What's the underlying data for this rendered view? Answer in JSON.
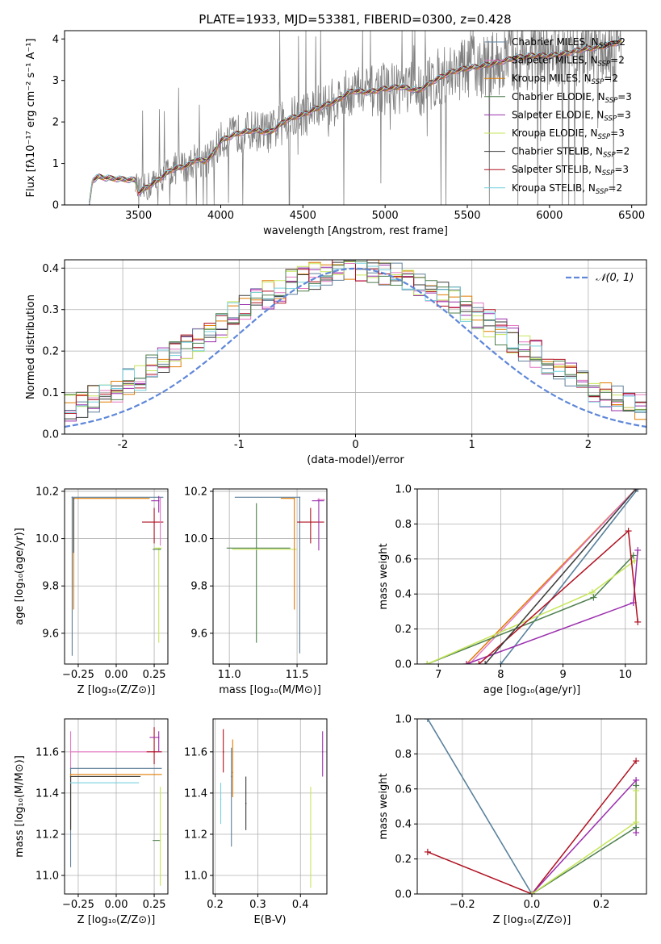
{
  "figure_title": "PLATE=1933, MJD=53381, FIBERID=0300, z=0.428",
  "colors": {
    "chabrier_miles": "#5e7f9a",
    "salpeter_miles": "#e377c2",
    "kroupa_miles": "#e07b00",
    "chabrier_elodie": "#4e7f4e",
    "salpeter_elodie": "#9b2fae",
    "kroupa_elodie": "#c6e65a",
    "chabrier_stelib": "#3a3a3a",
    "salpeter_stelib": "#b01020",
    "kroupa_stelib": "#76d0dd",
    "data_spectrum": "#808080",
    "normal_curve": "#5f87d9",
    "grid": "#b0b0b0"
  },
  "chart_data": [
    {
      "id": "spectrum",
      "type": "line",
      "xlabel": "wavelength [Angstrom, rest frame]",
      "ylabel": "Flux [fλ10⁻¹⁷ erg cm⁻² s⁻¹ A⁻¹]",
      "xlim": [
        3050,
        6590
      ],
      "ylim": [
        0,
        4.2
      ],
      "xticks": [
        3500,
        4000,
        4500,
        5000,
        5500,
        6000,
        6500
      ],
      "yticks": [
        0,
        1,
        2,
        3,
        4
      ],
      "legend_position": "top-right",
      "series": [
        {
          "name": "Chabrier MILES, N_SSP=2",
          "legend_main": "Chabrier MILES, N",
          "legend_sub": "SSP",
          "legend_tail": "=2",
          "color_key": "chabrier_miles"
        },
        {
          "name": "Salpeter MILES, N_SSP=2",
          "legend_main": "Salpeter MILES, N",
          "legend_sub": "SSP",
          "legend_tail": "=2",
          "color_key": "salpeter_miles"
        },
        {
          "name": "Kroupa MILES, N_SSP=2",
          "legend_main": "Kroupa MILES, N",
          "legend_sub": "SSP",
          "legend_tail": "=2",
          "color_key": "kroupa_miles"
        },
        {
          "name": "Chabrier ELODIE, N_SSP=3",
          "legend_main": "Chabrier ELODIE, N",
          "legend_sub": "SSP",
          "legend_tail": "=3",
          "color_key": "chabrier_elodie"
        },
        {
          "name": "Salpeter ELODIE, N_SSP=3",
          "legend_main": "Salpeter ELODIE, N",
          "legend_sub": "SSP",
          "legend_tail": "=3",
          "color_key": "salpeter_elodie"
        },
        {
          "name": "Kroupa ELODIE, N_SSP=3",
          "legend_main": "Kroupa ELODIE, N",
          "legend_sub": "SSP",
          "legend_tail": "=3",
          "color_key": "kroupa_elodie"
        },
        {
          "name": "Chabrier STELIB, N_SSP=2",
          "legend_main": "Chabrier STELIB, N",
          "legend_sub": "SSP",
          "legend_tail": "=2",
          "color_key": "chabrier_stelib"
        },
        {
          "name": "Salpeter STELIB, N_SSP=3",
          "legend_main": "Salpeter STELIB, N",
          "legend_sub": "SSP",
          "legend_tail": "=3",
          "color_key": "salpeter_stelib"
        },
        {
          "name": "Kroupa STELIB, N_SSP=2",
          "legend_main": "Kroupa STELIB, N",
          "legend_sub": "SSP",
          "legend_tail": "=2",
          "color_key": "kroupa_stelib"
        }
      ],
      "model_continuum": [
        [
          3200,
          0.0
        ],
        [
          3220,
          0.6
        ],
        [
          3260,
          0.68
        ],
        [
          3300,
          0.65
        ],
        [
          3400,
          0.62
        ],
        [
          3480,
          0.6
        ],
        [
          3500,
          0.3
        ],
        [
          3600,
          0.55
        ],
        [
          3700,
          0.85
        ],
        [
          3800,
          0.95
        ],
        [
          3850,
          1.1
        ],
        [
          3900,
          1.05
        ],
        [
          3950,
          1.2
        ],
        [
          4000,
          1.55
        ],
        [
          4100,
          1.72
        ],
        [
          4200,
          1.8
        ],
        [
          4300,
          1.75
        ],
        [
          4400,
          2.05
        ],
        [
          4500,
          2.18
        ],
        [
          4600,
          2.35
        ],
        [
          4700,
          2.5
        ],
        [
          4800,
          2.75
        ],
        [
          4900,
          2.72
        ],
        [
          5000,
          2.8
        ],
        [
          5100,
          2.85
        ],
        [
          5200,
          2.75
        ],
        [
          5300,
          3.0
        ],
        [
          5400,
          3.2
        ],
        [
          5500,
          3.3
        ],
        [
          5600,
          3.35
        ],
        [
          5700,
          3.45
        ],
        [
          5800,
          3.55
        ],
        [
          5900,
          3.6
        ],
        [
          6000,
          3.6
        ],
        [
          6100,
          3.65
        ],
        [
          6200,
          3.75
        ],
        [
          6300,
          3.8
        ],
        [
          6400,
          3.9
        ],
        [
          6440,
          3.95
        ]
      ],
      "data_range": [
        3200,
        6440
      ]
    },
    {
      "id": "residuals",
      "type": "line",
      "xlabel": "(data-model)/error",
      "ylabel": "Normed distribution",
      "xlim": [
        -2.5,
        2.5
      ],
      "ylim": [
        0,
        0.42
      ],
      "xticks": [
        -2,
        -1,
        0,
        1,
        2
      ],
      "yticks": [
        0.0,
        0.1,
        0.2,
        0.3,
        0.4
      ],
      "legend_position": "top-right",
      "normal_label": "𝒩(0, 1)",
      "bin_width": 0.1
    },
    {
      "id": "age_vs_Z",
      "type": "scatter",
      "xlabel": "Z [log₁₀(Z/Z⊙)]",
      "ylabel": "age  [log₁₀(age/yr)]",
      "xlim": [
        -0.34,
        0.34
      ],
      "ylim": [
        9.47,
        10.21
      ],
      "xticks": [
        -0.25,
        0.0,
        0.25
      ],
      "xticklabels": [
        "−0.25",
        "0.00",
        "0.25"
      ],
      "yticks": [
        9.6,
        9.8,
        10.0,
        10.2
      ],
      "yticklabels": [
        "9.6",
        "9.8",
        "10.0",
        "10.2"
      ],
      "errorbars": [
        {
          "x": -0.29,
          "y": 10.175,
          "xerr": [
            0.0,
            0.6
          ],
          "yerr": [
            0.0,
            0.0
          ],
          "color_key": "chabrier_miles"
        },
        {
          "x": -0.29,
          "y": 10.175,
          "xerr": [
            0.0,
            0.0
          ],
          "yerr": [
            0.67,
            0.0
          ],
          "color_key": "chabrier_miles"
        },
        {
          "x": -0.28,
          "y": 10.17,
          "xerr": [
            0.0,
            0.5
          ],
          "yerr": [
            0.47,
            0.0
          ],
          "color_key": "kroupa_miles"
        },
        {
          "x": -0.28,
          "y": 10.17,
          "xerr": [
            0.0,
            0.0
          ],
          "yerr": [
            0.23,
            0.0
          ],
          "color_key": "chabrier_stelib"
        },
        {
          "x": 0.25,
          "y": 10.07,
          "xerr": [
            0.08,
            0.06
          ],
          "yerr": [
            0.09,
            0.06
          ],
          "color_key": "salpeter_stelib"
        },
        {
          "x": 0.28,
          "y": 10.16,
          "xerr": [
            0.05,
            0.0
          ],
          "yerr": [
            0.05,
            0.02
          ],
          "color_key": "salpeter_elodie"
        },
        {
          "x": 0.28,
          "y": 9.96,
          "xerr": [
            0.03,
            0.02
          ],
          "yerr": [
            0.4,
            0.0
          ],
          "color_key": "kroupa_elodie"
        },
        {
          "x": 0.29,
          "y": 9.955,
          "xerr": [
            0.05,
            0.0
          ],
          "yerr": [
            0.0,
            0.0
          ],
          "color_key": "chabrier_elodie"
        },
        {
          "x": 0.29,
          "y": 10.17,
          "xerr": [
            0.0,
            0.0
          ],
          "yerr": [
            0.2,
            0.0
          ],
          "color_key": "salpeter_miles"
        }
      ]
    },
    {
      "id": "age_vs_mass",
      "type": "scatter",
      "xlabel": "mass [log₁₀(M/M⊙)]",
      "ylabel": "",
      "xlim": [
        10.88,
        11.72
      ],
      "ylim": [
        9.47,
        10.21
      ],
      "xticks": [
        11.0,
        11.5
      ],
      "xticklabels": [
        "11.0",
        "11.5"
      ],
      "yticks": [
        9.6,
        9.8,
        10.0,
        10.2
      ],
      "yticklabels": [
        "9.6",
        "9.8",
        "10.0",
        "10.2"
      ],
      "errorbars": [
        {
          "x": 11.2,
          "y": 9.96,
          "xerr": [
            0.22,
            0.25
          ],
          "yerr": [
            0.4,
            0.19
          ],
          "color_key": "chabrier_elodie"
        },
        {
          "x": 11.2,
          "y": 9.955,
          "xerr": [
            0.18,
            0.3
          ],
          "yerr": [
            0.0,
            0.0
          ],
          "color_key": "kroupa_elodie"
        },
        {
          "x": 11.52,
          "y": 10.175,
          "xerr": [
            0.48,
            0.0
          ],
          "yerr": [
            0.66,
            0.0
          ],
          "color_key": "chabrier_miles"
        },
        {
          "x": 11.48,
          "y": 10.17,
          "xerr": [
            0.1,
            0.0
          ],
          "yerr": [
            0.47,
            0.0
          ],
          "color_key": "kroupa_miles"
        },
        {
          "x": 11.6,
          "y": 10.07,
          "xerr": [
            0.1,
            0.1
          ],
          "yerr": [
            0.09,
            0.06
          ],
          "color_key": "salpeter_stelib"
        },
        {
          "x": 11.66,
          "y": 10.16,
          "xerr": [
            0.05,
            0.04
          ],
          "yerr": [
            0.21,
            0.01
          ],
          "color_key": "salpeter_elodie"
        },
        {
          "x": 11.7,
          "y": 10.165,
          "xerr": [
            0.05,
            0.0
          ],
          "yerr": [
            0.0,
            0.0
          ],
          "color_key": "salpeter_miles"
        }
      ]
    },
    {
      "id": "massweight_vs_age",
      "type": "line",
      "xlabel": "age  [log₁₀(age/yr)]",
      "ylabel": "mass weight",
      "xlim": [
        6.66,
        10.34
      ],
      "ylim": [
        0,
        1.0
      ],
      "xticks": [
        7,
        8,
        9,
        10
      ],
      "yticks": [
        0.0,
        0.2,
        0.4,
        0.6,
        0.8,
        1.0
      ],
      "series": [
        {
          "color_key": "kroupa_stelib",
          "x": [
            8.0,
            10.2
          ],
          "y": [
            0.0,
            1.0
          ]
        },
        {
          "color_key": "chabrier_miles",
          "x": [
            8.0,
            10.2
          ],
          "y": [
            0.0,
            1.0
          ]
        },
        {
          "color_key": "kroupa_miles",
          "x": [
            7.45,
            10.17
          ],
          "y": [
            0.0,
            1.0
          ]
        },
        {
          "color_key": "salpeter_miles",
          "x": [
            7.5,
            10.17
          ],
          "y": [
            0.0,
            1.0
          ]
        },
        {
          "color_key": "chabrier_elodie",
          "x": [
            6.82,
            9.49,
            10.13
          ],
          "y": [
            0.0,
            0.38,
            0.62
          ]
        },
        {
          "color_key": "kroupa_elodie",
          "x": [
            6.82,
            9.47,
            10.15
          ],
          "y": [
            0.0,
            0.41,
            0.59
          ]
        },
        {
          "color_key": "salpeter_elodie",
          "x": [
            7.45,
            10.13,
            10.2
          ],
          "y": [
            0.0,
            0.35,
            0.65
          ]
        },
        {
          "color_key": "salpeter_stelib",
          "x": [
            7.65,
            10.05,
            10.2
          ],
          "y": [
            0.0,
            0.76,
            0.24
          ]
        },
        {
          "color_key": "chabrier_stelib",
          "x": [
            7.75,
            10.17
          ],
          "y": [
            0.0,
            1.0
          ]
        }
      ]
    },
    {
      "id": "mass_vs_Z",
      "type": "scatter",
      "xlabel": "Z [log₁₀(Z/Z⊙)]",
      "ylabel": "mass [log₁₀(M/M⊙)]",
      "xlim": [
        -0.34,
        0.34
      ],
      "ylim": [
        10.91,
        11.76
      ],
      "xticks": [
        -0.25,
        0.0,
        0.25
      ],
      "xticklabels": [
        "−0.25",
        "0.00",
        "0.25"
      ],
      "yticks": [
        11.0,
        11.2,
        11.4,
        11.6
      ],
      "yticklabels": [
        "11.0",
        "11.2",
        "11.4",
        "11.6"
      ],
      "errorbars": [
        {
          "x": -0.3,
          "y": 11.6,
          "xerr": [
            0.0,
            0.6
          ],
          "yerr": [
            0.37,
            0.1
          ],
          "color_key": "salpeter_miles"
        },
        {
          "x": -0.3,
          "y": 11.52,
          "xerr": [
            0.0,
            0.6
          ],
          "yerr": [
            0.48,
            0.0
          ],
          "color_key": "chabrier_miles"
        },
        {
          "x": -0.3,
          "y": 11.49,
          "xerr": [
            0.0,
            0.6
          ],
          "yerr": [
            0.27,
            0.0
          ],
          "color_key": "kroupa_miles"
        },
        {
          "x": -0.3,
          "y": 11.48,
          "xerr": [
            0.0,
            0.46
          ],
          "yerr": [
            0.26,
            0.0
          ],
          "color_key": "chabrier_stelib"
        },
        {
          "x": -0.3,
          "y": 11.45,
          "xerr": [
            0.0,
            0.45
          ],
          "yerr": [
            0.0,
            0.0
          ],
          "color_key": "kroupa_stelib"
        },
        {
          "x": 0.25,
          "y": 11.6,
          "xerr": [
            0.05,
            0.05
          ],
          "yerr": [
            0.06,
            0.12
          ],
          "color_key": "salpeter_stelib"
        },
        {
          "x": 0.28,
          "y": 11.67,
          "xerr": [
            0.06,
            0.0
          ],
          "yerr": [
            0.07,
            0.03
          ],
          "color_key": "salpeter_elodie"
        },
        {
          "x": 0.29,
          "y": 11.17,
          "xerr": [
            0.05,
            0.0
          ],
          "yerr": [
            0.0,
            0.0
          ],
          "color_key": "chabrier_elodie"
        },
        {
          "x": 0.29,
          "y": 11.17,
          "xerr": [
            0.0,
            0.0
          ],
          "yerr": [
            0.22,
            0.26
          ],
          "color_key": "kroupa_elodie"
        }
      ]
    },
    {
      "id": "mass_vs_ebv",
      "type": "scatter",
      "xlabel": "E(B-V)",
      "ylabel": "",
      "xlim": [
        0.195,
        0.462
      ],
      "ylim": [
        10.91,
        11.76
      ],
      "xticks": [
        0.2,
        0.3,
        0.4
      ],
      "xticklabels": [
        "0.2",
        "0.3",
        "0.4"
      ],
      "yticks": [
        11.0,
        11.2,
        11.4,
        11.6
      ],
      "yticklabels": [
        "11.0",
        "11.2",
        "11.4",
        "11.6"
      ],
      "errorbars": [
        {
          "x": 0.213,
          "y": 11.37,
          "xerr": [
            0,
            0
          ],
          "yerr": [
            0.12,
            0.08
          ],
          "color_key": "kroupa_stelib"
        },
        {
          "x": 0.219,
          "y": 11.6,
          "xerr": [
            0,
            0
          ],
          "yerr": [
            0.1,
            0.11
          ],
          "color_key": "salpeter_stelib"
        },
        {
          "x": 0.238,
          "y": 11.48,
          "xerr": [
            0,
            0
          ],
          "yerr": [
            0.34,
            0.14
          ],
          "color_key": "chabrier_miles"
        },
        {
          "x": 0.241,
          "y": 11.5,
          "xerr": [
            0,
            0
          ],
          "yerr": [
            0.12,
            0.16
          ],
          "color_key": "kroupa_miles"
        },
        {
          "x": 0.272,
          "y": 11.35,
          "xerr": [
            0,
            0
          ],
          "yerr": [
            0.13,
            0.13
          ],
          "color_key": "chabrier_stelib"
        },
        {
          "x": 0.424,
          "y": 11.18,
          "xerr": [
            0,
            0
          ],
          "yerr": [
            0.24,
            0.25
          ],
          "color_key": "kroupa_elodie"
        },
        {
          "x": 0.452,
          "y": 11.6,
          "xerr": [
            0,
            0
          ],
          "yerr": [
            0.12,
            0.1
          ],
          "color_key": "salpeter_elodie"
        }
      ]
    },
    {
      "id": "massweight_vs_Z",
      "type": "line",
      "xlabel": "Z [log₁₀(Z/Z⊙)]",
      "ylabel": "mass weight",
      "xlim": [
        -0.33,
        0.33
      ],
      "ylim": [
        0,
        1.0
      ],
      "xticks": [
        -0.2,
        0.0,
        0.2
      ],
      "xticklabels": [
        "−0.2",
        "0.0",
        "0.2"
      ],
      "yticks": [
        0.0,
        0.2,
        0.4,
        0.6,
        0.8,
        1.0
      ],
      "series": [
        {
          "color_key": "kroupa_stelib",
          "x": [
            -0.3,
            0.0
          ],
          "y": [
            1.0,
            0.0
          ]
        },
        {
          "color_key": "chabrier_miles",
          "x": [
            -0.3,
            0.0
          ],
          "y": [
            1.0,
            0.0
          ]
        },
        {
          "color_key": "salpeter_stelib",
          "x": [
            -0.3,
            0.0,
            0.3
          ],
          "y": [
            0.24,
            0.0,
            0.76
          ]
        },
        {
          "color_key": "salpeter_elodie",
          "x": [
            0.0,
            0.3,
            0.3
          ],
          "y": [
            0.0,
            0.65,
            0.35
          ]
        },
        {
          "color_key": "chabrier_elodie",
          "x": [
            0.0,
            0.3,
            0.3
          ],
          "y": [
            0.0,
            0.38,
            0.62
          ]
        },
        {
          "color_key": "kroupa_elodie",
          "x": [
            0.0,
            0.3,
            0.3
          ],
          "y": [
            0.0,
            0.41,
            0.59
          ]
        }
      ]
    }
  ]
}
